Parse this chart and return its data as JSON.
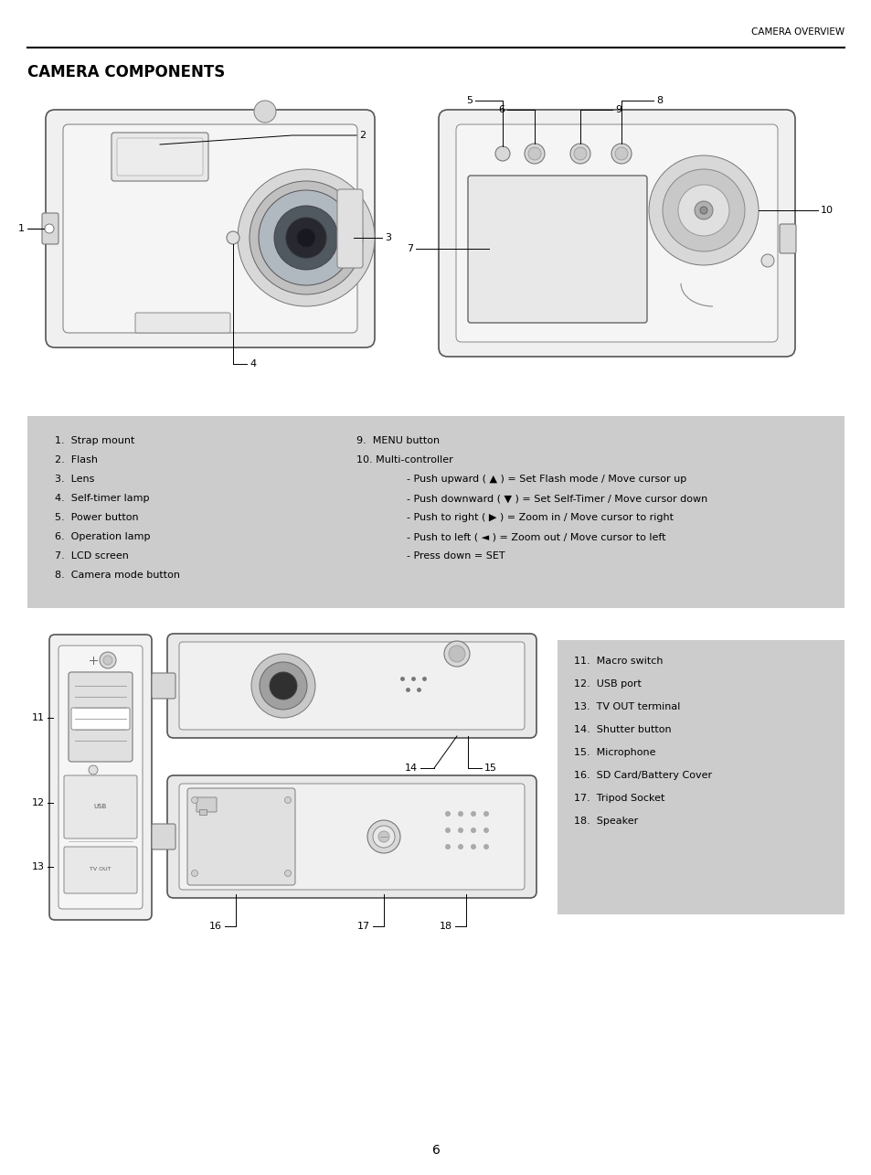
{
  "page_title": "CAMERA COMPONENTS",
  "header_text": "CAMERA OVERVIEW",
  "page_number": "6",
  "bg_color": "#ffffff",
  "box_bg_color": "#cccccc",
  "title_fontsize": 12,
  "header_fontsize": 7.5,
  "body_fontsize": 8,
  "left_column": [
    "1.  Strap mount",
    "2.  Flash",
    "3.  Lens",
    "4.  Self-timer lamp",
    "5.  Power button",
    "6.  Operation lamp",
    "7.  LCD screen",
    "8.  Camera mode button"
  ],
  "right_column_title1": "9.  MENU button",
  "right_column_title2": "10. Multi-controller",
  "right_column_items": [
    "- Push upward ( ▲ ) = Set Flash mode / Move cursor up",
    "- Push downward ( ▼ ) = Set Self-Timer / Move cursor down",
    "- Push to right ( ▶ ) = Zoom in / Move cursor to right",
    "- Push to left ( ◄ ) = Zoom out / Move cursor to left",
    "- Press down = SET"
  ],
  "bottom_right_items": [
    "11.  Macro switch",
    "12.  USB port",
    "13.  TV OUT terminal",
    "14.  Shutter button",
    "15.  Microphone",
    "16.  SD Card/Battery Cover",
    "17.  Tripod Socket",
    "18.  Speaker"
  ]
}
